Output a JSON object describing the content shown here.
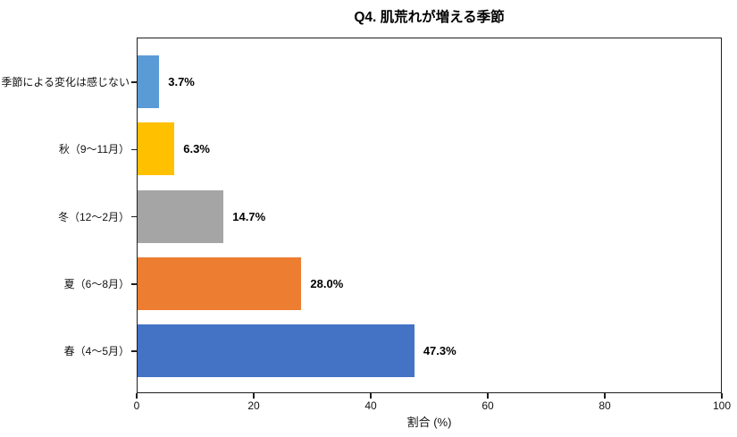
{
  "chart_data": {
    "type": "bar",
    "orientation": "horizontal",
    "title": "Q4. 肌荒れが増える季節",
    "xlabel": "割合 (%)",
    "xlim": [
      0,
      100
    ],
    "xticks": [
      0,
      20,
      40,
      60,
      80,
      100
    ],
    "grid": false,
    "legend": "none",
    "categories": [
      "季節による変化は感じない",
      "秋（9〜11月）",
      "冬（12〜2月）",
      "夏（6〜8月）",
      "春（4〜5月）"
    ],
    "values": [
      3.7,
      6.3,
      14.7,
      28.0,
      47.3
    ],
    "value_labels": [
      "3.7%",
      "6.3%",
      "14.7%",
      "28.0%",
      "47.3%"
    ],
    "colors": [
      "#5B9BD5",
      "#FFC000",
      "#A5A5A5",
      "#ED7D31",
      "#4472C4"
    ],
    "axis_color": "#1f1f1f",
    "background_color": "#ffffff"
  }
}
